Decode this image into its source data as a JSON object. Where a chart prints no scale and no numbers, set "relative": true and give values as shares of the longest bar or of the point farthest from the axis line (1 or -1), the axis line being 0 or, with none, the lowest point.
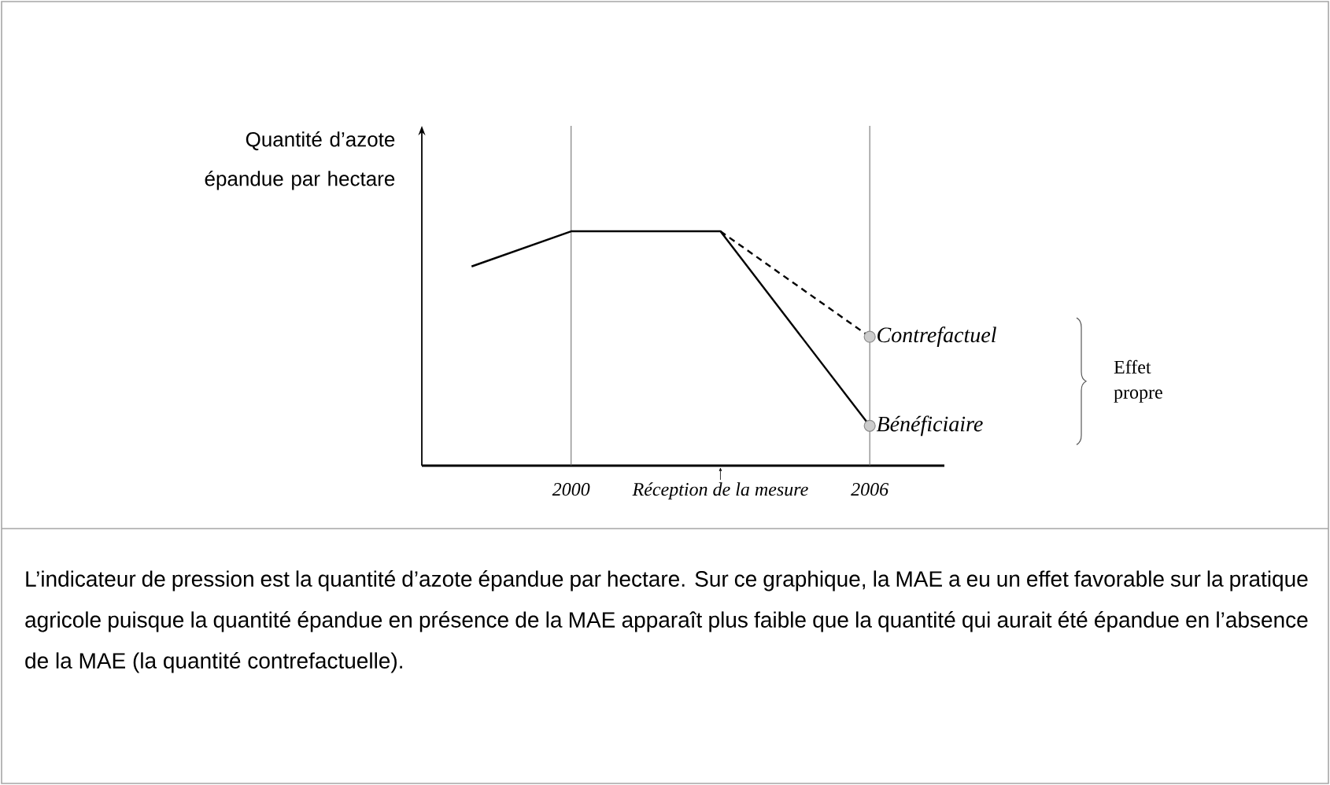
{
  "chart_data": {
    "type": "line",
    "relative": true,
    "ylabel": "Quantité d’azote épandue par hectare",
    "xlim": [
      1997,
      2007.5
    ],
    "xticks": [
      2000,
      2006,
      {
        "value": 2003,
        "label": "Réception de la mesure"
      }
    ],
    "series": [
      {
        "name": "Bénéficiaire",
        "color": "#000000",
        "line_style": "solid",
        "x": [
          1998,
          2000,
          2003,
          2006
        ],
        "values": [
          0.85,
          1,
          1,
          0.17
        ]
      },
      {
        "name": "Contrefactuel",
        "color": "#000000",
        "line_style": "dashed",
        "x": [
          2003,
          2006
        ],
        "values": [
          1,
          0.55
        ]
      }
    ],
    "ref_lines": [
      {
        "axis": "x",
        "value": 2000
      },
      {
        "axis": "x",
        "value": 2006
      }
    ],
    "annotations": [
      "Effet propre",
      "L’indicateur de pression est la quantité d’azote épandue par hectare. Sur ce graphique, la MAE a eu un effet favorable sur la pratique agricole puisque la quantité épandue en présence de la MAE apparaît plus faible que la quantité qui aurait été épandue en l’absence de la MAE (la quantité contrefactuelle)."
    ]
  }
}
